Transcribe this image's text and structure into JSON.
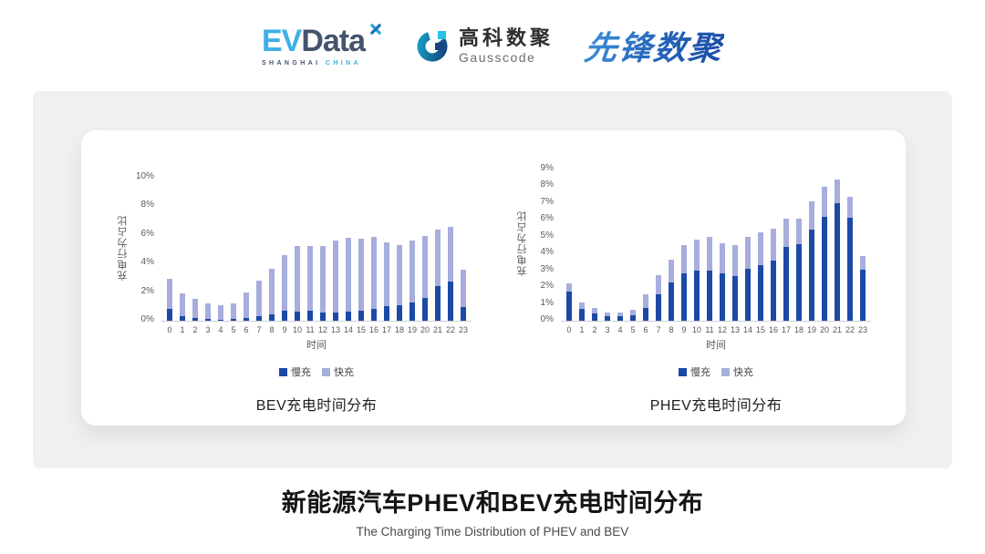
{
  "header": {
    "evdata": {
      "ev": "EV",
      "data": "Data",
      "sub1": "SHANGHAI",
      "sub2": "CHINA"
    },
    "gausscode": {
      "cn": "高科数聚",
      "en": "Gausscode"
    },
    "pioneer": {
      "text": "先锋数聚"
    }
  },
  "footer": {
    "title": "新能源汽车PHEV和BEV充电时间分布",
    "subtitle": "The Charging Time Distribution of PHEV and BEV"
  },
  "colors": {
    "slow_charge": "#1c49a5",
    "fast_charge": "#a7aedd",
    "panel_bg": "#f0f0f1",
    "axis_text": "#595959"
  },
  "chart_data": [
    {
      "type": "bar",
      "stacked": true,
      "title": "BEV充电时间分布",
      "ylabel": "充电行为占比",
      "xlabel": "时间",
      "ylim": [
        0,
        10
      ],
      "ytick_step": 2,
      "ytick_suffix": "%",
      "grid": false,
      "legend_position": "bottom",
      "categories": [
        "0",
        "1",
        "2",
        "3",
        "4",
        "5",
        "6",
        "7",
        "8",
        "9",
        "10",
        "11",
        "12",
        "13",
        "14",
        "15",
        "16",
        "17",
        "18",
        "19",
        "20",
        "21",
        "22",
        "23"
      ],
      "series": [
        {
          "name": "慢充",
          "color": "#1c49a5",
          "values": [
            0.8,
            0.35,
            0.2,
            0.1,
            0.08,
            0.1,
            0.17,
            0.35,
            0.45,
            0.7,
            0.65,
            0.7,
            0.6,
            0.6,
            0.65,
            0.7,
            0.8,
            1.0,
            1.1,
            1.3,
            1.6,
            2.4,
            2.75,
            0.95
          ]
        },
        {
          "name": "快充",
          "color": "#a7aedd",
          "values": [
            2.1,
            1.55,
            1.3,
            1.1,
            1.02,
            1.1,
            1.83,
            2.45,
            3.15,
            3.9,
            4.55,
            4.55,
            4.6,
            5.0,
            5.15,
            5.05,
            5.05,
            4.45,
            4.2,
            4.3,
            4.3,
            3.95,
            3.8,
            2.6
          ]
        }
      ]
    },
    {
      "type": "bar",
      "stacked": true,
      "title": "PHEV充电时间分布",
      "ylabel": "充电行为占比",
      "xlabel": "时间",
      "ylim": [
        0,
        9
      ],
      "ytick_step": 1,
      "ytick_suffix": "%",
      "grid": false,
      "legend_position": "bottom",
      "categories": [
        "0",
        "1",
        "2",
        "3",
        "4",
        "5",
        "6",
        "7",
        "8",
        "9",
        "10",
        "11",
        "12",
        "13",
        "14",
        "15",
        "16",
        "17",
        "18",
        "19",
        "20",
        "21",
        "22",
        "23"
      ],
      "series": [
        {
          "name": "慢充",
          "color": "#1c49a5",
          "values": [
            1.75,
            0.72,
            0.45,
            0.25,
            0.25,
            0.32,
            0.75,
            1.6,
            2.3,
            2.8,
            3.0,
            3.0,
            2.8,
            2.65,
            3.1,
            3.3,
            3.6,
            4.4,
            4.55,
            5.4,
            6.2,
            7.0,
            6.15,
            3.05
          ]
        },
        {
          "name": "快充",
          "color": "#a7aedd",
          "values": [
            0.5,
            0.38,
            0.3,
            0.25,
            0.25,
            0.34,
            0.85,
            1.1,
            1.35,
            1.7,
            1.8,
            2.0,
            1.8,
            1.85,
            1.9,
            1.95,
            1.9,
            1.7,
            1.55,
            1.7,
            1.75,
            1.4,
            1.2,
            0.8
          ]
        }
      ]
    }
  ]
}
